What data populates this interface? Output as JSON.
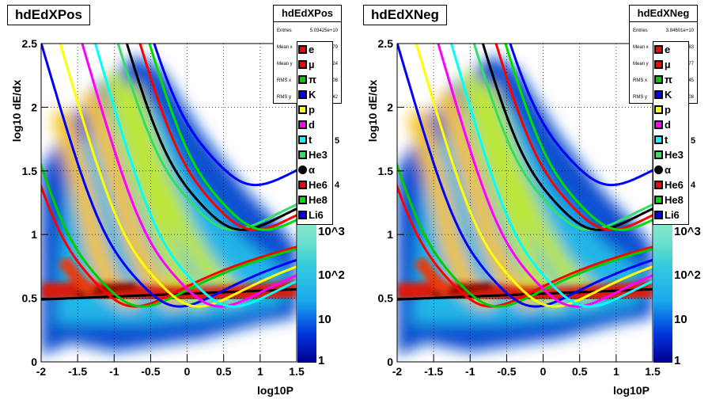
{
  "chart_data": [
    {
      "type": "heatmap",
      "title": "hdEdXPos",
      "xlabel": "log10P",
      "ylabel": "log10 dE/dx",
      "xlim": [
        -2,
        1.5
      ],
      "ylim": [
        0,
        2.5
      ],
      "x_ticks": [
        "-2",
        "-1.5",
        "-1",
        "-0.5",
        "0",
        "0.5",
        "1",
        "1.5"
      ],
      "y_ticks": [
        "0",
        "0.5",
        "1",
        "1.5",
        "2",
        "2.5"
      ],
      "z_scale": "log",
      "z_ticks": [
        "1",
        "10",
        "10^2",
        "10^3"
      ],
      "grid": true,
      "stats": {
        "title": "hdEdXPos",
        "entries_label": "Entries",
        "entries_value": "5.03425e+10",
        "rows": [
          {
            "label": "Mean x",
            "value": "79"
          },
          {
            "label": "Mean y",
            "value": "24"
          },
          {
            "label": "RMS x",
            "value": "08"
          },
          {
            "label": "RMS y",
            "value": "42"
          }
        ]
      },
      "legend_placement": "top-right",
      "series": [
        {
          "name": "e",
          "color": "#ff0000"
        },
        {
          "name": "µ",
          "color": "#ff0000"
        },
        {
          "name": "π",
          "color": "#00cc00"
        },
        {
          "name": "K",
          "color": "#0000ff"
        },
        {
          "name": "p",
          "color": "#ffff00"
        },
        {
          "name": "d",
          "color": "#ff00ff"
        },
        {
          "name": "t",
          "color": "#00ffff"
        },
        {
          "name": "He3",
          "color": "#33dd66"
        },
        {
          "name": "α",
          "color": "#000000"
        },
        {
          "name": "He6",
          "color": "#ff0000"
        },
        {
          "name": "He8",
          "color": "#00dd00"
        },
        {
          "name": "Li6",
          "color": "#0000ff"
        }
      ],
      "partial_labels": [
        "5",
        "4"
      ]
    },
    {
      "type": "heatmap",
      "title": "hdEdXNeg",
      "xlabel": "log10P",
      "ylabel": "log10 dE/dx",
      "xlim": [
        -2,
        1.5
      ],
      "ylim": [
        0,
        2.5
      ],
      "x_ticks": [
        "-2",
        "-1.5",
        "-1",
        "-0.5",
        "0",
        "0.5",
        "1",
        "1.5"
      ],
      "y_ticks": [
        "0",
        "0.5",
        "1",
        "1.5",
        "2",
        "2.5"
      ],
      "z_scale": "log",
      "z_ticks": [
        "1",
        "10",
        "10^2",
        "10^3"
      ],
      "grid": true,
      "stats": {
        "title": "hdEdXNeg",
        "entries_label": "Entries",
        "entries_value": "3.84601e+10",
        "rows": [
          {
            "label": "Mean x",
            "value": "83"
          },
          {
            "label": "Mean y",
            "value": "77"
          },
          {
            "label": "RMS x",
            "value": "45"
          },
          {
            "label": "RMS y",
            "value": "08"
          }
        ]
      },
      "legend_placement": "top-right",
      "series": [
        {
          "name": "e",
          "color": "#ff0000"
        },
        {
          "name": "µ",
          "color": "#ff0000"
        },
        {
          "name": "π",
          "color": "#00cc00"
        },
        {
          "name": "K",
          "color": "#0000ff"
        },
        {
          "name": "p",
          "color": "#ffff00"
        },
        {
          "name": "d",
          "color": "#ff00ff"
        },
        {
          "name": "t",
          "color": "#00ffff"
        },
        {
          "name": "He3",
          "color": "#33dd66"
        },
        {
          "name": "α",
          "color": "#000000"
        },
        {
          "name": "He6",
          "color": "#ff0000"
        },
        {
          "name": "He8",
          "color": "#00dd00"
        },
        {
          "name": "Li6",
          "color": "#0000ff"
        }
      ],
      "partial_labels": [
        "5",
        "4"
      ]
    }
  ]
}
